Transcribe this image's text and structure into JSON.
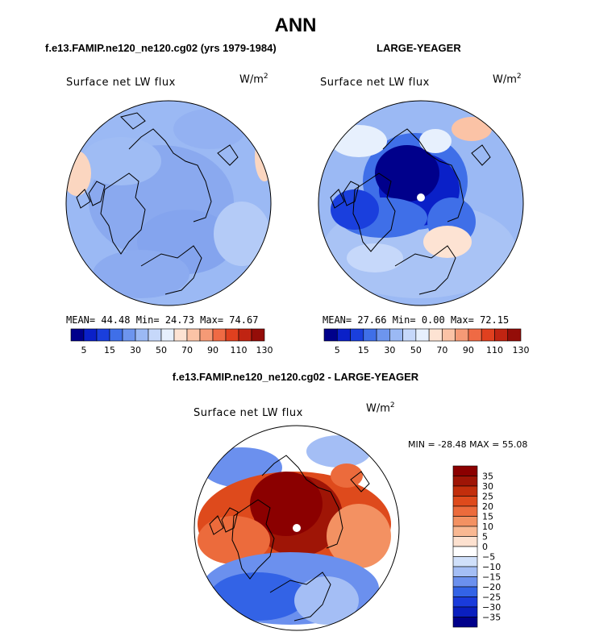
{
  "header": {
    "title": "ANN",
    "left_subtitle": "f.e13.FAMIP.ne120_ne120.cg02 (yrs 1979-1984)",
    "right_subtitle": "LARGE-YEAGER",
    "diff_subtitle": "f.e13.FAMIP.ne120_ne120.cg02 - LARGE-YEAGER"
  },
  "panels": {
    "left": {
      "variable": "Surface net LW flux",
      "unit_base": "W/m",
      "unit_exp": "2",
      "stats": "MEAN=  44.48  Min=  24.73  Max=  74.67"
    },
    "right": {
      "variable": "Surface net LW flux",
      "unit_base": "W/m",
      "unit_exp": "2",
      "stats": "MEAN=  27.66  Min=   0.00  Max=  72.15"
    },
    "diff": {
      "variable": "Surface net LW flux",
      "unit_base": "W/m",
      "unit_exp": "2",
      "stats": "MIN = -28.48 MAX =  55.08"
    }
  },
  "colors": {
    "abs_scale": [
      "#00008b",
      "#0a20c8",
      "#1a3fdd",
      "#3f6fe8",
      "#6d95ee",
      "#9bb9f4",
      "#c6d8fa",
      "#e7f0fd",
      "#fde3d3",
      "#fbc3a6",
      "#f59a76",
      "#ef6a44",
      "#e0401f",
      "#c02412",
      "#940d08"
    ],
    "diff_scale": [
      "#00008b",
      "#0a1fbf",
      "#1a3bdb",
      "#3363e6",
      "#6b90ee",
      "#a4bef5",
      "#d0e0fa",
      "#ffffff",
      "#fde1cf",
      "#f9b892",
      "#f39162",
      "#ec6b3c",
      "#de4a1c",
      "#c22e0c",
      "#9f1506",
      "#8b0000"
    ],
    "land_outline": "#000000"
  },
  "chart_data": [
    {
      "type": "heatmap",
      "projection": "north-polar-stereographic",
      "title": "Surface net LW flux",
      "units": "W/m2",
      "mean": 44.48,
      "min": 24.73,
      "max": 74.67,
      "colorbar_ticks": [
        5,
        15,
        30,
        50,
        70,
        90,
        110,
        130
      ],
      "colorbar_orientation": "horizontal"
    },
    {
      "type": "heatmap",
      "projection": "north-polar-stereographic",
      "title": "Surface net LW flux",
      "units": "W/m2",
      "mean": 27.66,
      "min": 0.0,
      "max": 72.15,
      "colorbar_ticks": [
        5,
        15,
        30,
        50,
        70,
        90,
        110,
        130
      ],
      "colorbar_orientation": "horizontal"
    },
    {
      "type": "heatmap",
      "projection": "north-polar-stereographic",
      "title": "Surface net LW flux",
      "units": "W/m2",
      "min": -28.48,
      "max": 55.08,
      "colorbar_ticks": [
        35,
        30,
        25,
        20,
        15,
        10,
        5,
        0,
        -5,
        -10,
        -15,
        -20,
        -25,
        -30,
        -35
      ],
      "colorbar_orientation": "vertical"
    }
  ]
}
